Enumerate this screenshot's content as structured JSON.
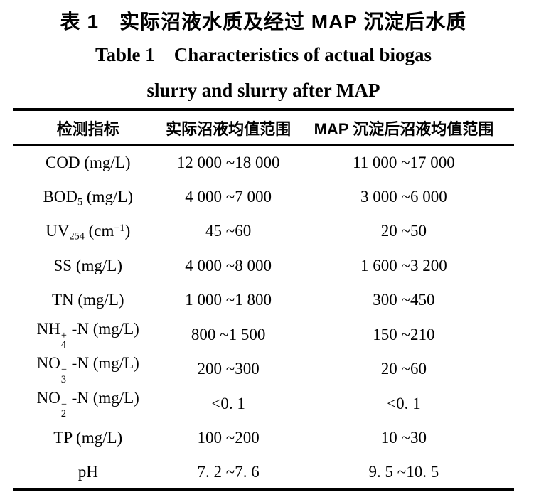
{
  "titles": {
    "zh": "表 1　实际沼液水质及经过 MAP 沉淀后水质",
    "en_line1": "Table 1　Characteristics of actual biogas",
    "en_line2": "slurry and slurry after MAP"
  },
  "table": {
    "headers": [
      "检测指标",
      "实际沼液均值范围",
      "MAP 沉淀后沼液均值范围"
    ],
    "rows": [
      {
        "indicator": [
          {
            "t": "COD (mg/L)"
          }
        ],
        "actual": "12 000 ~18 000",
        "map": "11 000 ~17 000"
      },
      {
        "indicator": [
          {
            "t": "BOD"
          },
          {
            "sub": "5"
          },
          {
            "t": " (mg/L)"
          }
        ],
        "actual": "4 000 ~7 000",
        "map": "3 000 ~6 000"
      },
      {
        "indicator": [
          {
            "t": "UV"
          },
          {
            "sub": "254"
          },
          {
            "t": " (cm"
          },
          {
            "sup": "−1"
          },
          {
            "t": ")"
          }
        ],
        "actual": "45 ~60",
        "map": "20 ~50"
      },
      {
        "indicator": [
          {
            "t": "SS (mg/L)"
          }
        ],
        "actual": "4 000 ~8 000",
        "map": "1 600 ~3 200"
      },
      {
        "indicator": [
          {
            "t": "TN (mg/L)"
          }
        ],
        "actual": "1 000 ~1 800",
        "map": "300 ~450"
      },
      {
        "indicator": [
          {
            "t": "NH"
          },
          {
            "stack": true,
            "sup": "+",
            "sub": "4"
          },
          {
            "t": " -N (mg/L)"
          }
        ],
        "actual": "800 ~1 500",
        "map": "150 ~210"
      },
      {
        "indicator": [
          {
            "t": "NO"
          },
          {
            "stack": true,
            "sup": "−",
            "sub": "3"
          },
          {
            "t": " -N (mg/L)"
          }
        ],
        "actual": "200 ~300",
        "map": "20 ~60"
      },
      {
        "indicator": [
          {
            "t": "NO"
          },
          {
            "stack": true,
            "sup": "−",
            "sub": "2"
          },
          {
            "t": " -N (mg/L)"
          }
        ],
        "actual": "<0. 1",
        "map": "<0. 1"
      },
      {
        "indicator": [
          {
            "t": "TP (mg/L)"
          }
        ],
        "actual": "100 ~200",
        "map": "10 ~30"
      },
      {
        "indicator": [
          {
            "t": "pH"
          }
        ],
        "actual": "7. 2 ~7. 6",
        "map": "9. 5 ~10. 5"
      }
    ]
  },
  "colors": {
    "text": "#000000",
    "background": "#ffffff",
    "rule": "#000000"
  }
}
